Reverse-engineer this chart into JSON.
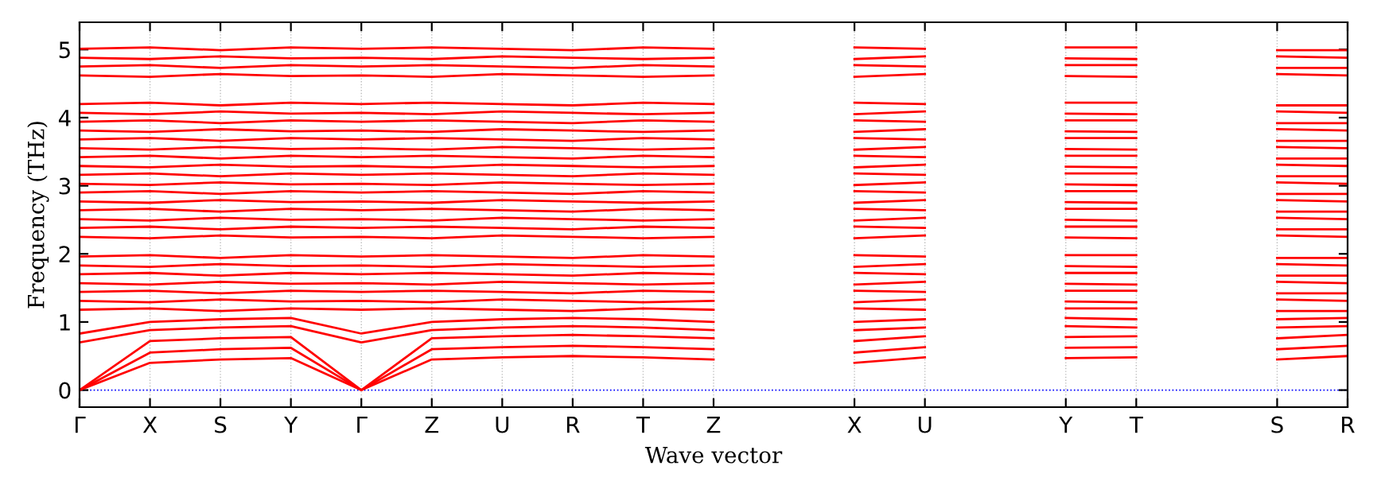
{
  "chart_data": {
    "type": "line",
    "ylabel": "Frequency (THz)",
    "xlabel": "Wave vector",
    "categories": [
      "Γ",
      "X",
      "S",
      "Y",
      "Γ",
      "Z",
      "U",
      "R",
      "T",
      "Z",
      null,
      "X",
      "U",
      null,
      "Y",
      "T",
      null,
      "S",
      "R"
    ],
    "ylim": [
      -0.25,
      5.4
    ],
    "yticks": [
      0,
      1,
      2,
      3,
      4,
      5
    ],
    "grid": "x",
    "marker": "none",
    "line_style": "solid",
    "ref_lines": [
      {
        "axis": "y",
        "value": 0,
        "color": "#0000ff",
        "line_style": "dotted"
      }
    ],
    "series": [
      {
        "color": "#ff0000",
        "values": [
          0,
          0.4,
          0.45,
          0.47,
          0,
          0.45,
          0.48,
          0.5,
          0.48,
          0.45,
          null,
          0.4,
          0.48,
          null,
          0.47,
          0.48,
          null,
          0.45,
          0.5
        ]
      },
      {
        "color": "#ff0000",
        "values": [
          0,
          0.55,
          0.6,
          0.62,
          0,
          0.6,
          0.63,
          0.65,
          0.63,
          0.6,
          null,
          0.55,
          0.63,
          null,
          0.62,
          0.63,
          null,
          0.6,
          0.65
        ]
      },
      {
        "color": "#ff0000",
        "values": [
          0,
          0.72,
          0.76,
          0.78,
          0,
          0.76,
          0.79,
          0.81,
          0.79,
          0.76,
          null,
          0.72,
          0.79,
          null,
          0.78,
          0.79,
          null,
          0.76,
          0.81
        ]
      },
      {
        "color": "#ff0000",
        "values": [
          0.7,
          0.88,
          0.92,
          0.94,
          0.7,
          0.88,
          0.92,
          0.94,
          0.92,
          0.88,
          null,
          0.88,
          0.92,
          null,
          0.94,
          0.92,
          null,
          0.92,
          0.94
        ]
      },
      {
        "color": "#ff0000",
        "values": [
          0.83,
          1.0,
          1.04,
          1.06,
          0.83,
          1.0,
          1.04,
          1.06,
          1.04,
          1.0,
          null,
          1.0,
          1.04,
          null,
          1.06,
          1.04,
          null,
          1.04,
          1.06
        ]
      },
      {
        "color": "#ff0000",
        "values": [
          1.18,
          1.2,
          1.16,
          1.2,
          1.18,
          1.2,
          1.18,
          1.16,
          1.2,
          1.18,
          null,
          1.2,
          1.18,
          null,
          1.2,
          1.2,
          null,
          1.16,
          1.16
        ]
      },
      {
        "color": "#ff0000",
        "values": [
          1.31,
          1.29,
          1.33,
          1.3,
          1.31,
          1.29,
          1.33,
          1.31,
          1.29,
          1.31,
          null,
          1.29,
          1.33,
          null,
          1.3,
          1.29,
          null,
          1.33,
          1.31
        ]
      },
      {
        "color": "#ff0000",
        "values": [
          1.44,
          1.46,
          1.42,
          1.46,
          1.44,
          1.46,
          1.44,
          1.42,
          1.46,
          1.44,
          null,
          1.46,
          1.44,
          null,
          1.46,
          1.46,
          null,
          1.42,
          1.42
        ]
      },
      {
        "color": "#ff0000",
        "values": [
          1.57,
          1.55,
          1.59,
          1.56,
          1.57,
          1.55,
          1.59,
          1.57,
          1.55,
          1.57,
          null,
          1.55,
          1.59,
          null,
          1.56,
          1.55,
          null,
          1.59,
          1.57
        ]
      },
      {
        "color": "#ff0000",
        "values": [
          1.7,
          1.72,
          1.68,
          1.72,
          1.7,
          1.72,
          1.7,
          1.68,
          1.72,
          1.7,
          null,
          1.72,
          1.7,
          null,
          1.72,
          1.72,
          null,
          1.68,
          1.68
        ]
      },
      {
        "color": "#ff0000",
        "values": [
          1.83,
          1.81,
          1.85,
          1.82,
          1.83,
          1.81,
          1.85,
          1.83,
          1.81,
          1.83,
          null,
          1.81,
          1.85,
          null,
          1.82,
          1.81,
          null,
          1.85,
          1.83
        ]
      },
      {
        "color": "#ff0000",
        "values": [
          1.96,
          1.98,
          1.94,
          1.98,
          1.96,
          1.98,
          1.96,
          1.94,
          1.98,
          1.96,
          null,
          1.98,
          1.96,
          null,
          1.98,
          1.98,
          null,
          1.94,
          1.94
        ]
      },
      {
        "color": "#ff0000",
        "values": [
          2.25,
          2.23,
          2.27,
          2.24,
          2.25,
          2.23,
          2.27,
          2.25,
          2.23,
          2.25,
          null,
          2.23,
          2.27,
          null,
          2.24,
          2.23,
          null,
          2.27,
          2.25
        ]
      },
      {
        "color": "#ff0000",
        "values": [
          2.38,
          2.4,
          2.36,
          2.4,
          2.38,
          2.4,
          2.38,
          2.36,
          2.4,
          2.38,
          null,
          2.4,
          2.38,
          null,
          2.4,
          2.4,
          null,
          2.36,
          2.36
        ]
      },
      {
        "color": "#ff0000",
        "values": [
          2.51,
          2.49,
          2.53,
          2.5,
          2.51,
          2.49,
          2.53,
          2.51,
          2.49,
          2.51,
          null,
          2.49,
          2.53,
          null,
          2.5,
          2.49,
          null,
          2.53,
          2.51
        ]
      },
      {
        "color": "#ff0000",
        "values": [
          2.64,
          2.66,
          2.62,
          2.66,
          2.64,
          2.66,
          2.64,
          2.62,
          2.66,
          2.64,
          null,
          2.66,
          2.64,
          null,
          2.66,
          2.66,
          null,
          2.62,
          2.62
        ]
      },
      {
        "color": "#ff0000",
        "values": [
          2.77,
          2.75,
          2.79,
          2.76,
          2.77,
          2.75,
          2.79,
          2.77,
          2.75,
          2.77,
          null,
          2.75,
          2.79,
          null,
          2.76,
          2.75,
          null,
          2.79,
          2.77
        ]
      },
      {
        "color": "#ff0000",
        "values": [
          2.9,
          2.92,
          2.88,
          2.92,
          2.9,
          2.92,
          2.9,
          2.88,
          2.92,
          2.9,
          null,
          2.92,
          2.9,
          null,
          2.92,
          2.92,
          null,
          2.88,
          2.88
        ]
      },
      {
        "color": "#ff0000",
        "values": [
          3.03,
          3.01,
          3.05,
          3.02,
          3.03,
          3.01,
          3.05,
          3.03,
          3.01,
          3.03,
          null,
          3.01,
          3.05,
          null,
          3.02,
          3.01,
          null,
          3.05,
          3.03
        ]
      },
      {
        "color": "#ff0000",
        "values": [
          3.16,
          3.18,
          3.14,
          3.18,
          3.16,
          3.18,
          3.16,
          3.14,
          3.18,
          3.16,
          null,
          3.18,
          3.16,
          null,
          3.18,
          3.18,
          null,
          3.14,
          3.14
        ]
      },
      {
        "color": "#ff0000",
        "values": [
          3.29,
          3.27,
          3.31,
          3.28,
          3.29,
          3.27,
          3.31,
          3.29,
          3.27,
          3.29,
          null,
          3.27,
          3.31,
          null,
          3.28,
          3.27,
          null,
          3.31,
          3.29
        ]
      },
      {
        "color": "#ff0000",
        "values": [
          3.42,
          3.44,
          3.4,
          3.44,
          3.42,
          3.44,
          3.42,
          3.4,
          3.44,
          3.42,
          null,
          3.44,
          3.42,
          null,
          3.44,
          3.44,
          null,
          3.4,
          3.4
        ]
      },
      {
        "color": "#ff0000",
        "values": [
          3.55,
          3.53,
          3.57,
          3.54,
          3.55,
          3.53,
          3.57,
          3.55,
          3.53,
          3.55,
          null,
          3.53,
          3.57,
          null,
          3.54,
          3.53,
          null,
          3.57,
          3.55
        ]
      },
      {
        "color": "#ff0000",
        "values": [
          3.68,
          3.7,
          3.66,
          3.7,
          3.68,
          3.7,
          3.68,
          3.66,
          3.7,
          3.68,
          null,
          3.7,
          3.68,
          null,
          3.7,
          3.7,
          null,
          3.66,
          3.66
        ]
      },
      {
        "color": "#ff0000",
        "values": [
          3.81,
          3.79,
          3.83,
          3.8,
          3.81,
          3.79,
          3.83,
          3.81,
          3.79,
          3.81,
          null,
          3.79,
          3.83,
          null,
          3.8,
          3.79,
          null,
          3.83,
          3.81
        ]
      },
      {
        "color": "#ff0000",
        "values": [
          3.94,
          3.96,
          3.92,
          3.96,
          3.94,
          3.96,
          3.94,
          3.92,
          3.96,
          3.94,
          null,
          3.96,
          3.94,
          null,
          3.96,
          3.96,
          null,
          3.92,
          3.92
        ]
      },
      {
        "color": "#ff0000",
        "values": [
          4.07,
          4.05,
          4.09,
          4.06,
          4.07,
          4.05,
          4.09,
          4.07,
          4.05,
          4.07,
          null,
          4.05,
          4.09,
          null,
          4.06,
          4.05,
          null,
          4.09,
          4.07
        ]
      },
      {
        "color": "#ff0000",
        "values": [
          4.2,
          4.22,
          4.18,
          4.22,
          4.2,
          4.22,
          4.2,
          4.18,
          4.22,
          4.2,
          null,
          4.22,
          4.2,
          null,
          4.22,
          4.22,
          null,
          4.18,
          4.18
        ]
      },
      {
        "color": "#ff0000",
        "values": [
          4.62,
          4.6,
          4.64,
          4.61,
          4.62,
          4.6,
          4.64,
          4.62,
          4.6,
          4.62,
          null,
          4.6,
          4.64,
          null,
          4.61,
          4.6,
          null,
          4.64,
          4.62
        ]
      },
      {
        "color": "#ff0000",
        "values": [
          4.75,
          4.77,
          4.73,
          4.77,
          4.75,
          4.77,
          4.75,
          4.73,
          4.77,
          4.75,
          null,
          4.77,
          4.75,
          null,
          4.77,
          4.77,
          null,
          4.73,
          4.73
        ]
      },
      {
        "color": "#ff0000",
        "values": [
          4.88,
          4.86,
          4.9,
          4.87,
          4.88,
          4.86,
          4.9,
          4.88,
          4.86,
          4.88,
          null,
          4.86,
          4.9,
          null,
          4.87,
          4.86,
          null,
          4.9,
          4.88
        ]
      },
      {
        "color": "#ff0000",
        "values": [
          5.01,
          5.03,
          4.99,
          5.03,
          5.01,
          5.03,
          5.01,
          4.99,
          5.03,
          5.01,
          null,
          5.03,
          5.01,
          null,
          5.03,
          5.03,
          null,
          4.99,
          4.99
        ]
      }
    ]
  }
}
